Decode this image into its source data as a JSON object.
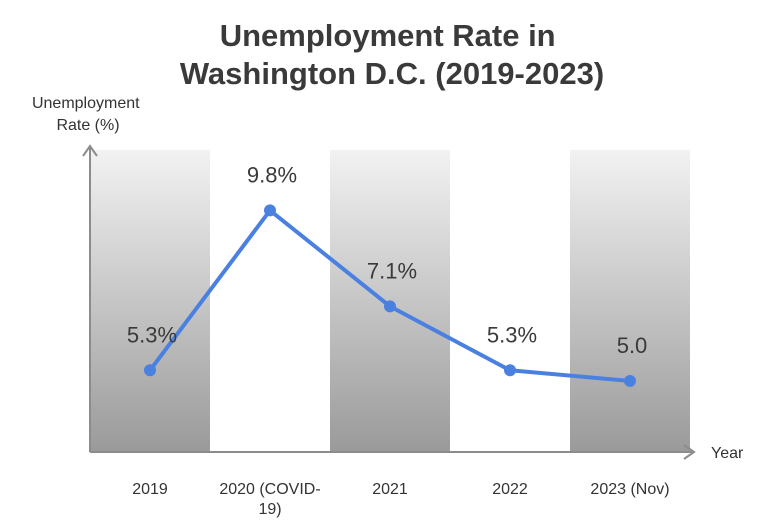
{
  "chart_data": {
    "type": "line",
    "title": [
      "Unemployment Rate in",
      "Washington D.C. (2019-2023)"
    ],
    "ylabel": [
      "Unemployment",
      "Rate (%)"
    ],
    "xlabel": "Year",
    "categories": [
      [
        "2019"
      ],
      [
        "2020 (COVID-",
        "19)"
      ],
      [
        "2021"
      ],
      [
        "2022"
      ],
      [
        "2023 (Nov)"
      ]
    ],
    "values": [
      5.3,
      9.8,
      7.1,
      5.3,
      5.0
    ],
    "data_labels": [
      "5.3%",
      "9.8%",
      "7.1%",
      "5.3%",
      "5.0"
    ],
    "ylim": [
      3.0,
      11.5
    ],
    "grid": false,
    "line_color": "#4a80e0",
    "band_color_top": "#f2f2f2",
    "band_color_bottom": "#9a9a9a"
  }
}
